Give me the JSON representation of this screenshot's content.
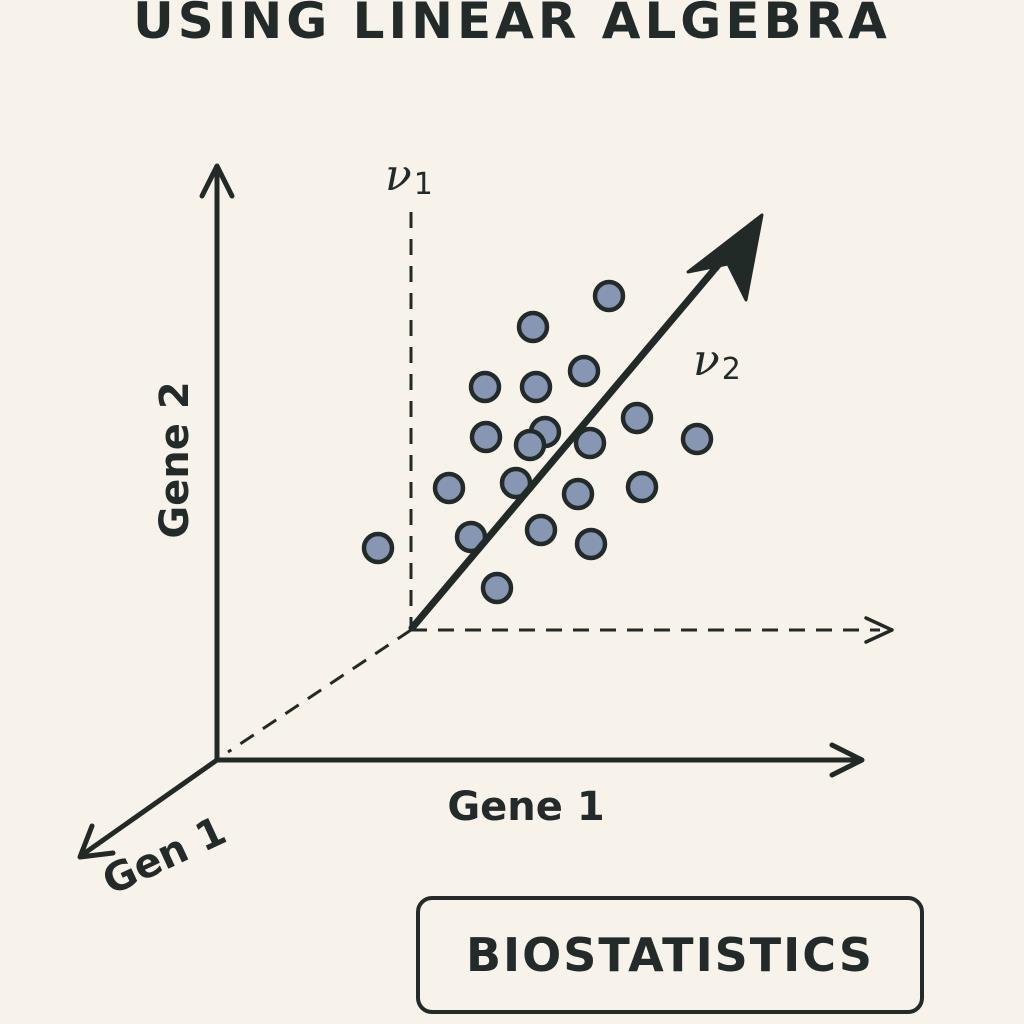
{
  "title": "USING LINEAR ALGEBRA",
  "labels": {
    "vector_1": "ν",
    "vector_1_sub": "1",
    "vector_2": "ν",
    "vector_2_sub": "2",
    "y_axis": "Gene 2",
    "x_axis": "Gene 1",
    "z_axis": "Gen 1"
  },
  "badge": "BIOSTATISTICS",
  "colors": {
    "background": "#f8f3ea",
    "ink": "#232b2a",
    "point_fill": "#8696b3"
  },
  "data_points_count": 22
}
